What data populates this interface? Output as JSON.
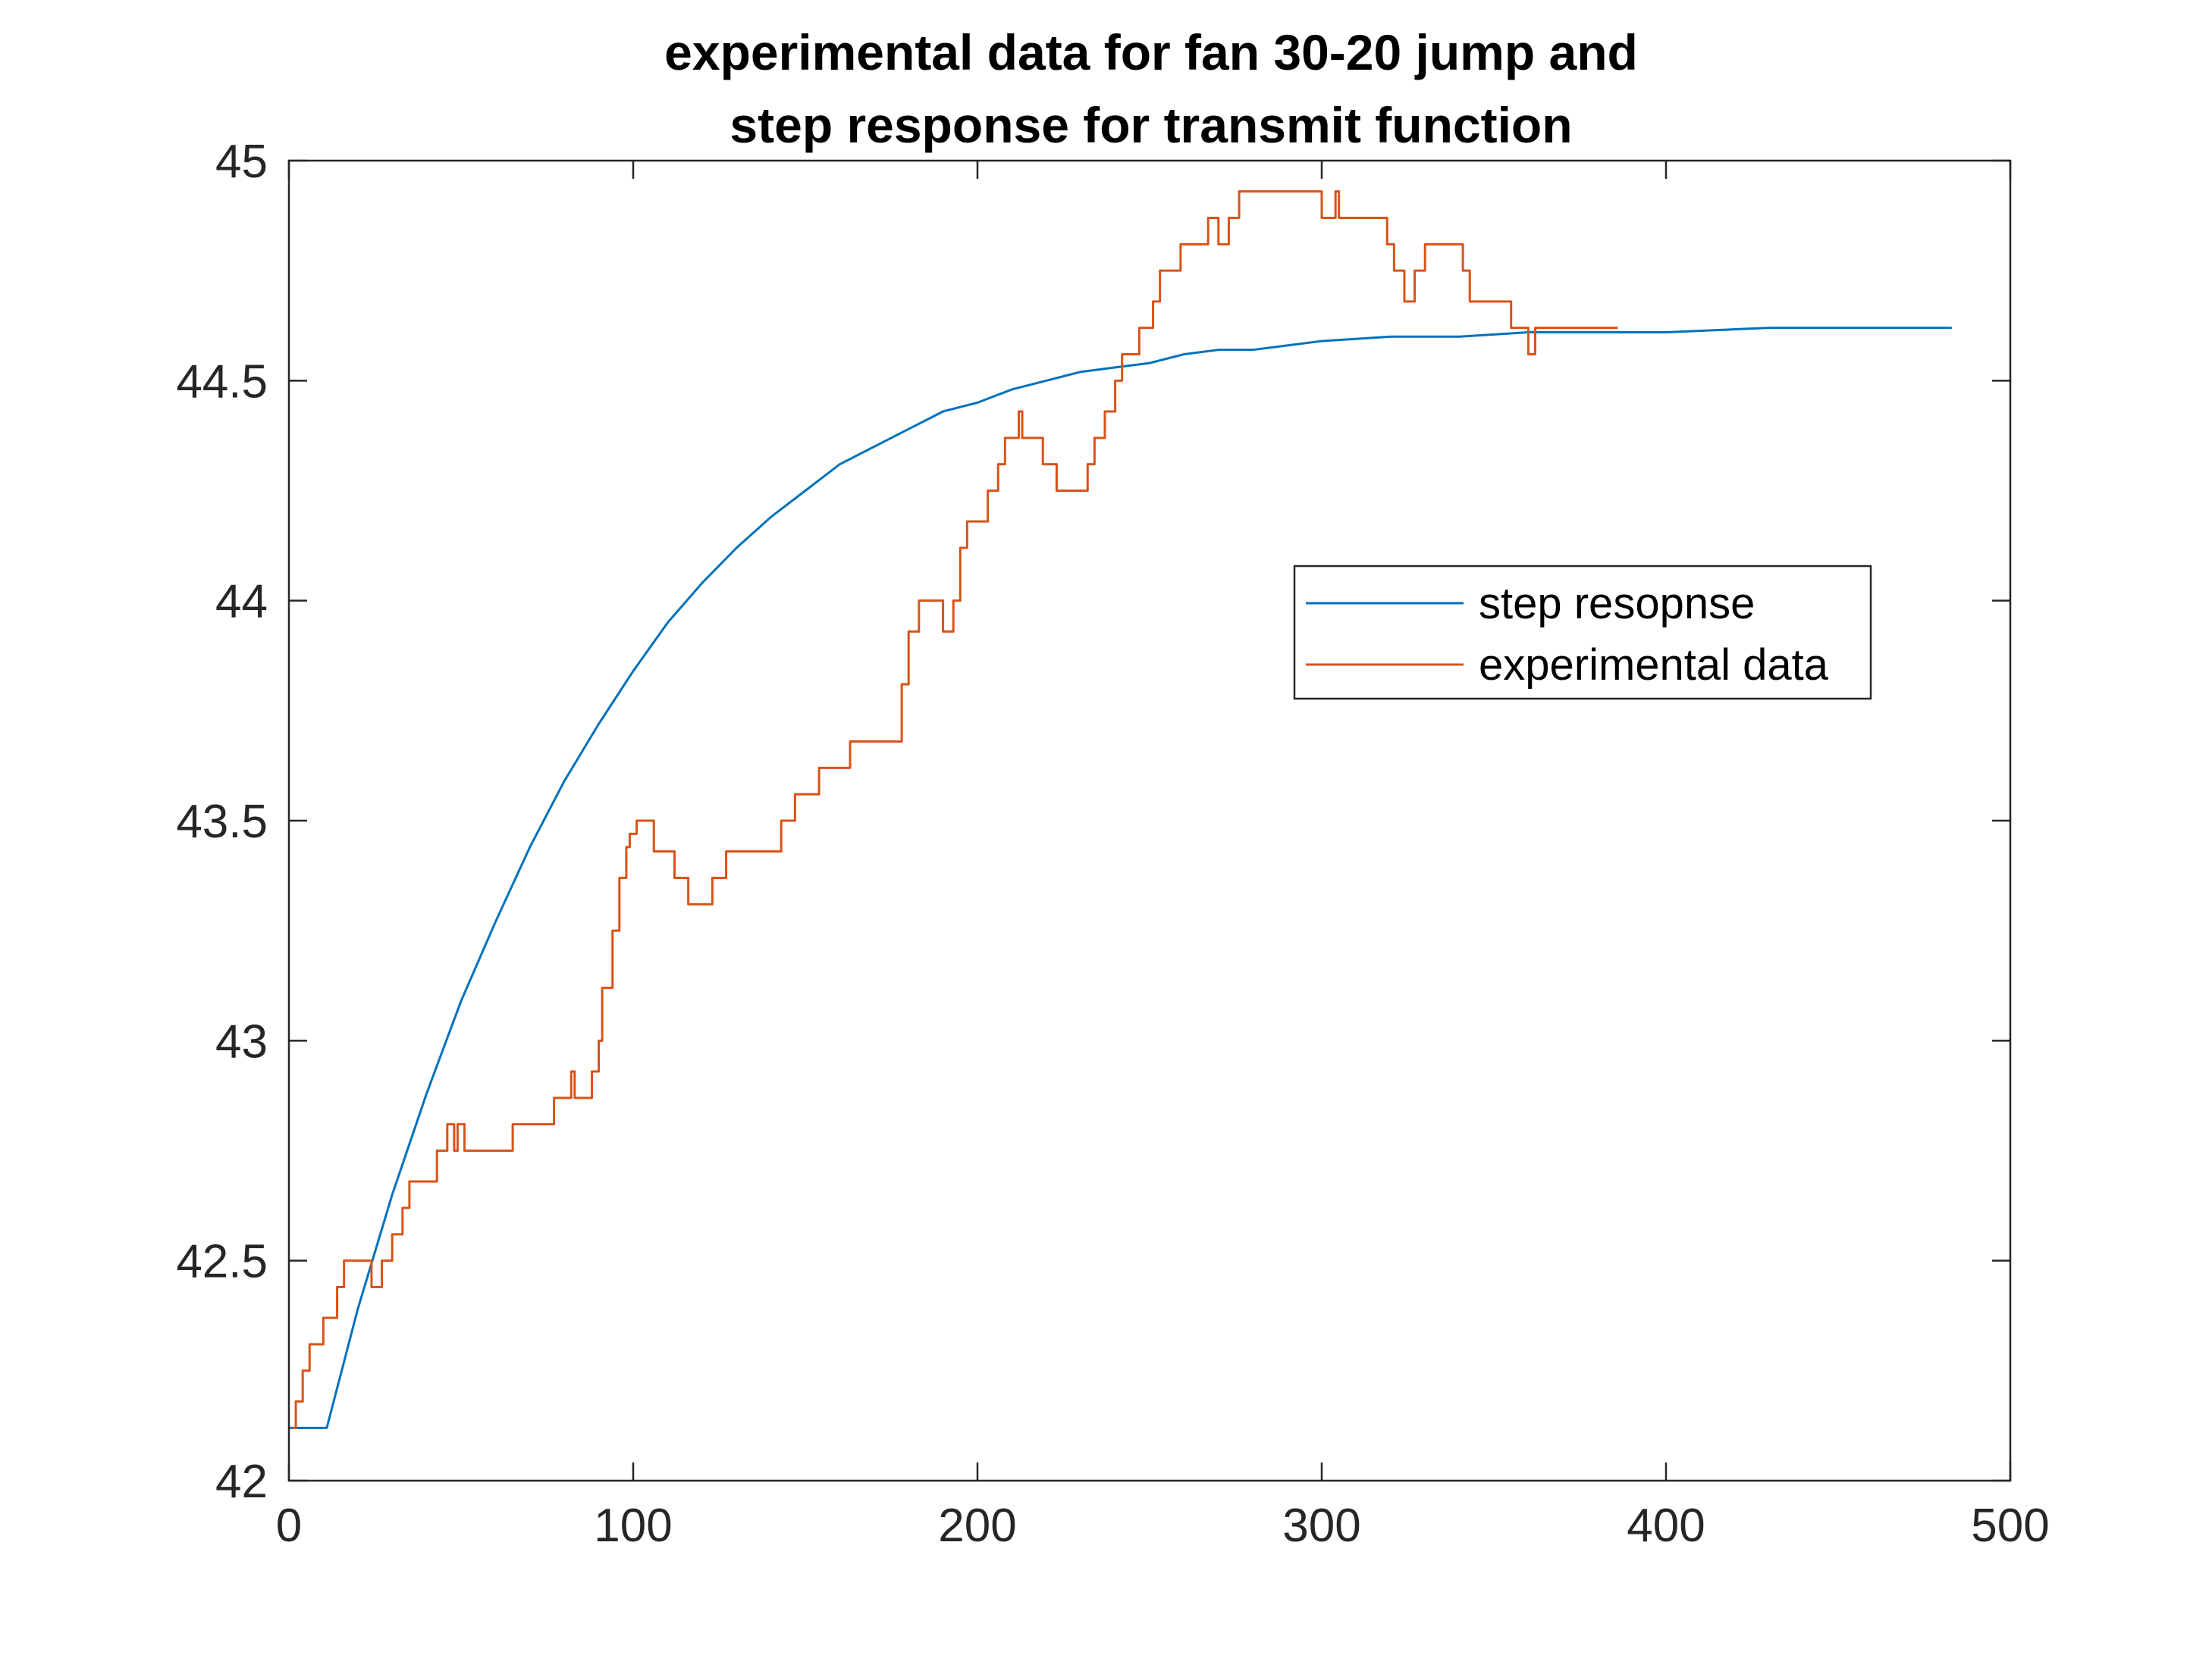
{
  "chart_data": {
    "type": "line",
    "title": [
      "experimental data for fan 30-20 jump and",
      "step response for transmit function"
    ],
    "xlabel": "",
    "ylabel": "",
    "xlim": [
      0,
      500
    ],
    "ylim": [
      42,
      45
    ],
    "xticks": [
      0,
      100,
      200,
      300,
      400,
      500
    ],
    "yticks": [
      42,
      42.5,
      43,
      43.5,
      44,
      44.5,
      45
    ],
    "xtick_labels": [
      "0",
      "100",
      "200",
      "300",
      "400",
      "500"
    ],
    "ytick_labels": [
      "42",
      "42.5",
      "43",
      "43.5",
      "44",
      "44.5",
      "45"
    ],
    "grid": false,
    "legend_position": "upper right (inside, center-right)",
    "series": [
      {
        "name": "step resopnse",
        "color": "#0072BD",
        "kind": "first-order step",
        "points": [
          [
            0,
            42.12
          ],
          [
            11,
            42.12
          ],
          [
            20,
            42.39
          ],
          [
            30,
            42.65
          ],
          [
            40,
            42.88
          ],
          [
            50,
            43.09
          ],
          [
            60,
            43.27
          ],
          [
            70,
            43.44
          ],
          [
            80,
            43.59
          ],
          [
            90,
            43.72
          ],
          [
            100,
            43.84
          ],
          [
            110,
            43.95
          ],
          [
            120,
            44.04
          ],
          [
            130,
            44.12
          ],
          [
            140,
            44.19
          ],
          [
            150,
            44.25
          ],
          [
            160,
            44.31
          ],
          [
            170,
            44.35
          ],
          [
            180,
            44.39
          ],
          [
            190,
            44.43
          ],
          [
            200,
            44.45
          ],
          [
            210,
            44.48
          ],
          [
            220,
            44.5
          ],
          [
            230,
            44.52
          ],
          [
            240,
            44.53
          ],
          [
            250,
            44.54
          ],
          [
            260,
            44.56
          ],
          [
            270,
            44.57
          ],
          [
            280,
            44.57
          ],
          [
            290,
            44.58
          ],
          [
            300,
            44.59
          ],
          [
            320,
            44.6
          ],
          [
            340,
            44.6
          ],
          [
            360,
            44.61
          ],
          [
            380,
            44.61
          ],
          [
            400,
            44.61
          ],
          [
            430,
            44.62
          ],
          [
            460,
            44.62
          ],
          [
            483,
            44.62
          ]
        ]
      },
      {
        "name": "experimental data",
        "color": "#D95319",
        "kind": "stairs",
        "points": [
          [
            1,
            42.12
          ],
          [
            2,
            42.18
          ],
          [
            4,
            42.25
          ],
          [
            6,
            42.31
          ],
          [
            10,
            42.37
          ],
          [
            14,
            42.44
          ],
          [
            16,
            42.5
          ],
          [
            24,
            42.44
          ],
          [
            27,
            42.5
          ],
          [
            30,
            42.56
          ],
          [
            33,
            42.62
          ],
          [
            35,
            42.68
          ],
          [
            43,
            42.75
          ],
          [
            46,
            42.81
          ],
          [
            48,
            42.75
          ],
          [
            49,
            42.81
          ],
          [
            51,
            42.75
          ],
          [
            65,
            42.81
          ],
          [
            77,
            42.87
          ],
          [
            82,
            42.93
          ],
          [
            83,
            42.87
          ],
          [
            88,
            42.93
          ],
          [
            90,
            43.0
          ],
          [
            91,
            43.12
          ],
          [
            94,
            43.25
          ],
          [
            96,
            43.37
          ],
          [
            98,
            43.44
          ],
          [
            99,
            43.47
          ],
          [
            101,
            43.5
          ],
          [
            106,
            43.43
          ],
          [
            112,
            43.37
          ],
          [
            116,
            43.31
          ],
          [
            123,
            43.37
          ],
          [
            127,
            43.43
          ],
          [
            143,
            43.5
          ],
          [
            147,
            43.56
          ],
          [
            154,
            43.62
          ],
          [
            163,
            43.68
          ],
          [
            178,
            43.81
          ],
          [
            180,
            43.93
          ],
          [
            183,
            44.0
          ],
          [
            190,
            43.93
          ],
          [
            193,
            44.0
          ],
          [
            195,
            44.12
          ],
          [
            197,
            44.18
          ],
          [
            203,
            44.25
          ],
          [
            206,
            44.31
          ],
          [
            208,
            44.37
          ],
          [
            212,
            44.43
          ],
          [
            213,
            44.37
          ],
          [
            219,
            44.31
          ],
          [
            223,
            44.25
          ],
          [
            232,
            44.31
          ],
          [
            234,
            44.37
          ],
          [
            237,
            44.43
          ],
          [
            240,
            44.5
          ],
          [
            242,
            44.56
          ],
          [
            247,
            44.62
          ],
          [
            251,
            44.68
          ],
          [
            253,
            44.75
          ],
          [
            259,
            44.81
          ],
          [
            267,
            44.87
          ],
          [
            270,
            44.81
          ],
          [
            273,
            44.87
          ],
          [
            276,
            44.93
          ],
          [
            300,
            44.87
          ],
          [
            304,
            44.93
          ],
          [
            305,
            44.87
          ],
          [
            319,
            44.81
          ],
          [
            321,
            44.75
          ],
          [
            324,
            44.68
          ],
          [
            327,
            44.75
          ],
          [
            330,
            44.81
          ],
          [
            341,
            44.75
          ],
          [
            343,
            44.68
          ],
          [
            355,
            44.62
          ],
          [
            360,
            44.56
          ],
          [
            362,
            44.62
          ],
          [
            386,
            44.62
          ]
        ]
      }
    ]
  },
  "legend": {
    "entries": [
      "step resopnse",
      "experimental data"
    ]
  },
  "colors": {
    "axes": "#262626",
    "series_blue": "#0072BD",
    "series_orange": "#D95319",
    "background": "#ffffff"
  }
}
